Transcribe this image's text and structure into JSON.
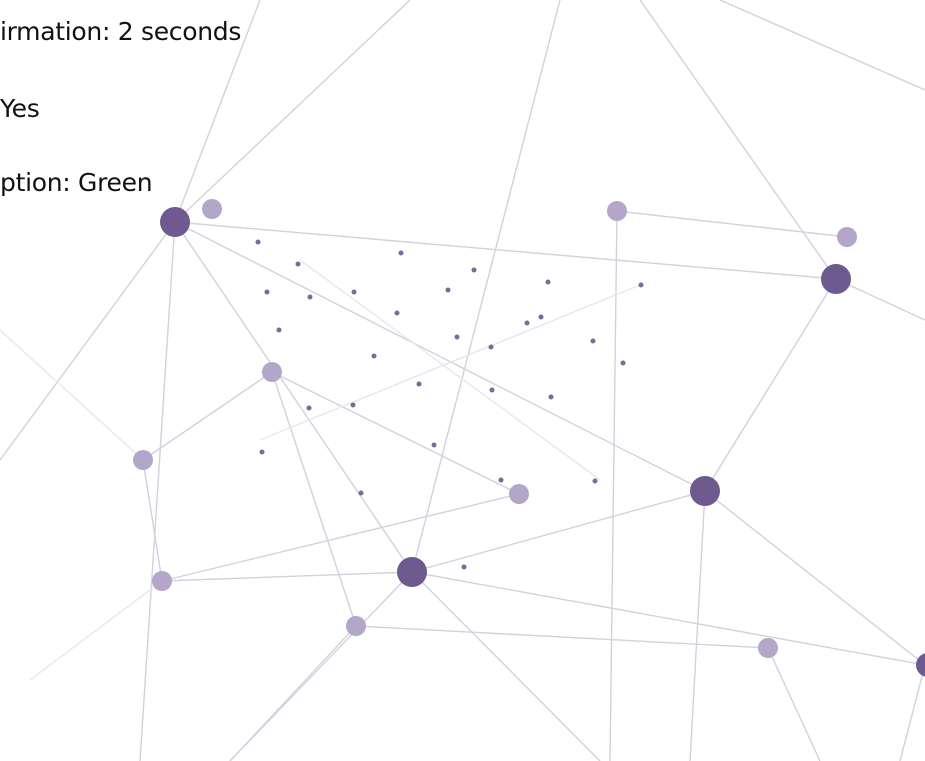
{
  "lines": [
    "irmation: 2 seconds",
    "Yes",
    "ption: Green"
  ]
}
